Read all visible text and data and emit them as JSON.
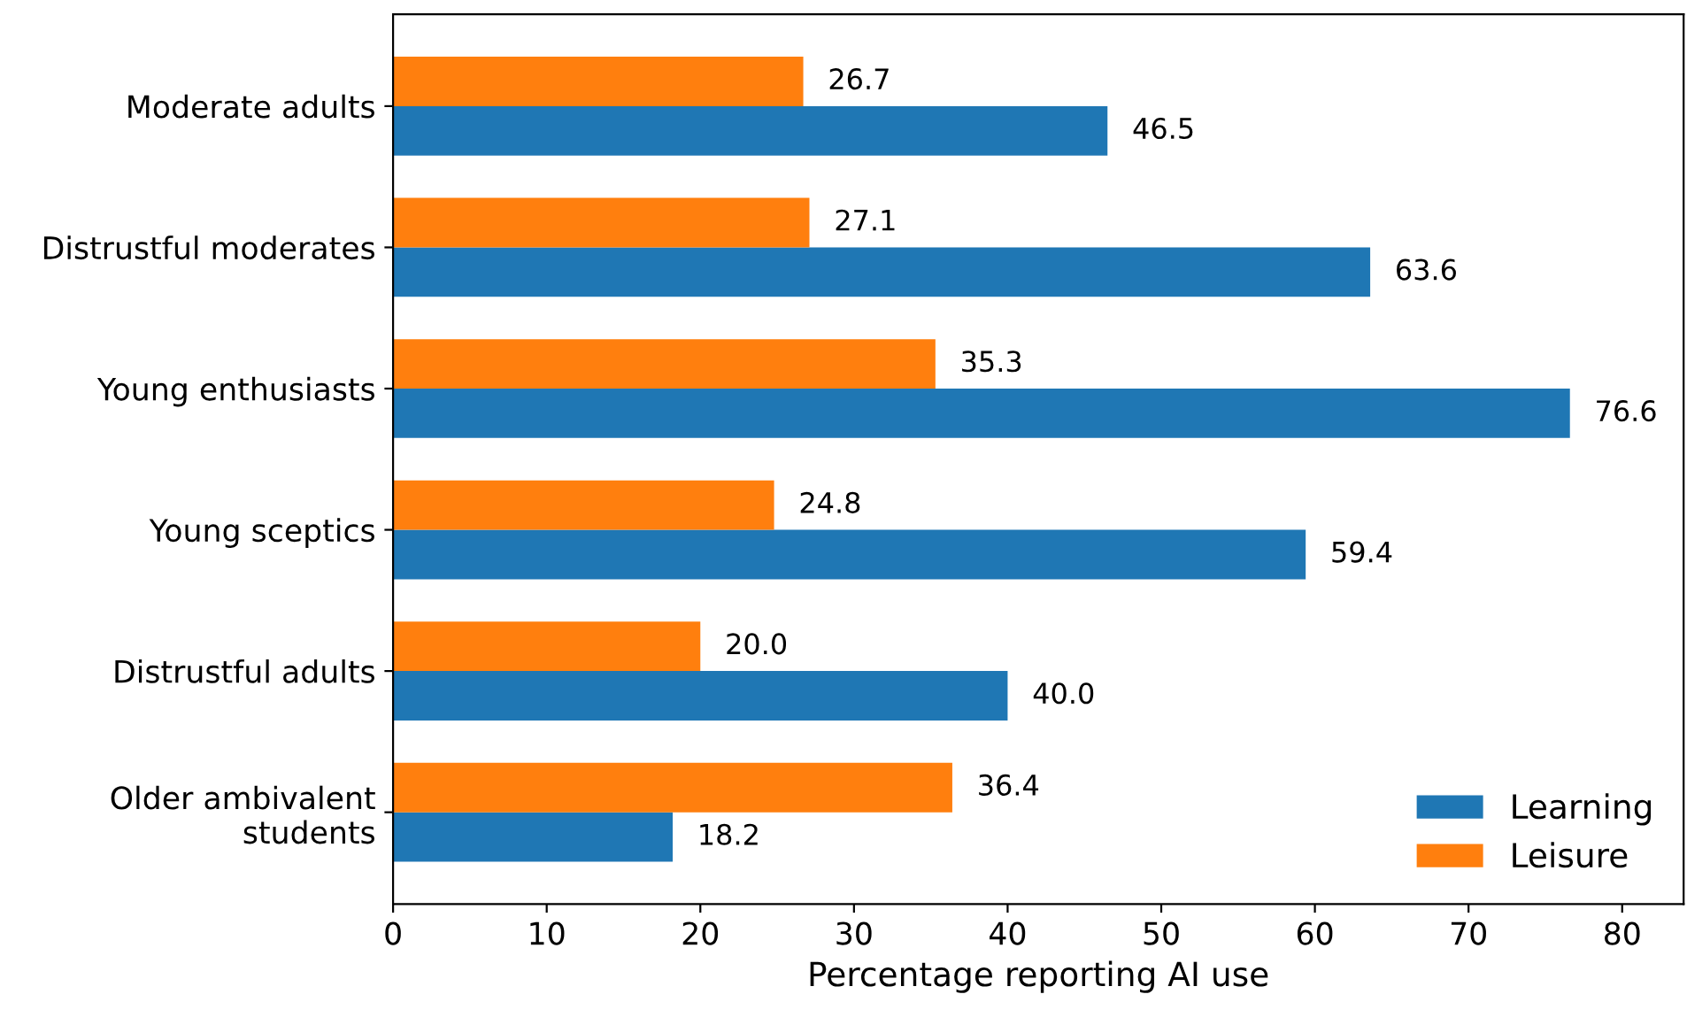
{
  "chart_data": {
    "type": "bar",
    "orientation": "horizontal",
    "xlabel": "Percentage reporting AI use",
    "categories": [
      "Moderate adults",
      "Distrustful moderates",
      "Young enthusiasts",
      "Young sceptics",
      "Distrustful adults",
      "Older ambivalent\nstudents"
    ],
    "series": [
      {
        "name": "Learning",
        "color": "#1f77b4",
        "values": [
          46.5,
          63.6,
          76.6,
          59.4,
          40.0,
          18.2
        ],
        "value_labels": [
          "46.5",
          "63.6",
          "76.6",
          "59.4",
          "40.0",
          "18.2"
        ]
      },
      {
        "name": "Leisure",
        "color": "#ff7f0e",
        "values": [
          26.7,
          27.1,
          35.3,
          24.8,
          20.0,
          36.4
        ],
        "value_labels": [
          "26.7",
          "27.1",
          "35.3",
          "24.8",
          "20.0",
          "36.4"
        ]
      }
    ],
    "xlim": [
      0,
      84
    ],
    "xticks": [
      0,
      10,
      20,
      30,
      40,
      50,
      60,
      70,
      80
    ],
    "legend": "lower right",
    "grid": false
  }
}
